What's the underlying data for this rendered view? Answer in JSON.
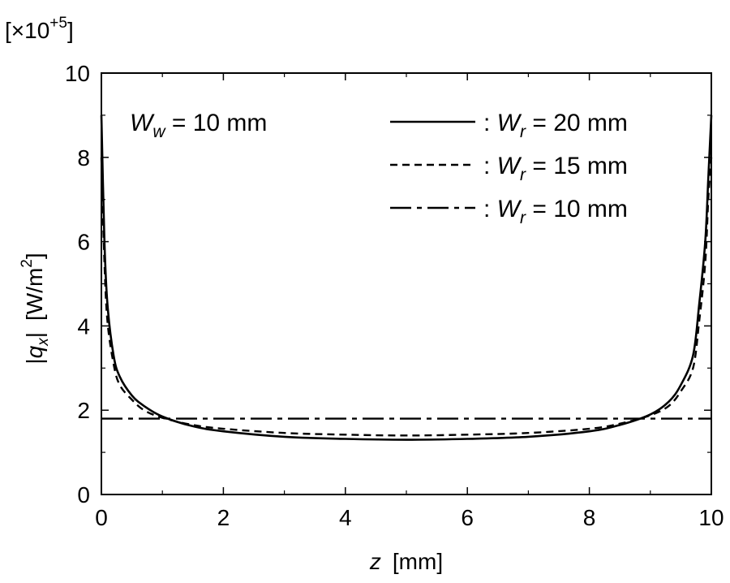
{
  "chart_data": {
    "type": "line",
    "multiplier_label": {
      "open": "[×10",
      "exp": "+5",
      "close": "]"
    },
    "xlabel": {
      "var": "z",
      "unit": "[mm]"
    },
    "ylabel": {
      "var": "q",
      "sub": "x",
      "unit": "[W/m",
      "exp": "2",
      "close": "]"
    },
    "xlim": [
      0,
      10
    ],
    "ylim": [
      0,
      10
    ],
    "xticks": [
      0,
      2,
      4,
      6,
      8,
      10
    ],
    "yticks": [
      0,
      2,
      4,
      6,
      8,
      10
    ],
    "grid": false,
    "annotation": {
      "var": "W",
      "sub": "w",
      "text": " = 10 mm"
    },
    "legend_position": "top-right",
    "series": [
      {
        "name": "W_r = 20 mm",
        "legend": {
          "prefix": ": ",
          "var": "W",
          "sub": "r",
          "text": " = 20 mm"
        },
        "style": "solid",
        "x": [
          0.0,
          0.05,
          0.1,
          0.2,
          0.3,
          0.5,
          0.7,
          1.0,
          1.5,
          2.0,
          3.0,
          4.0,
          5.0,
          6.0,
          7.0,
          8.0,
          8.5,
          9.0,
          9.3,
          9.5,
          9.7,
          9.8,
          9.9,
          9.95,
          10.0
        ],
        "y": [
          9.0,
          6.0,
          4.5,
          3.3,
          2.8,
          2.35,
          2.1,
          1.85,
          1.62,
          1.5,
          1.37,
          1.32,
          1.3,
          1.32,
          1.37,
          1.5,
          1.65,
          1.9,
          2.2,
          2.6,
          3.3,
          4.5,
          6.0,
          7.5,
          9.0
        ]
      },
      {
        "name": "W_r = 15 mm",
        "legend": {
          "prefix": ": ",
          "var": "W",
          "sub": "r",
          "text": " = 15 mm"
        },
        "style": "dashed",
        "x": [
          0.0,
          0.05,
          0.1,
          0.2,
          0.3,
          0.5,
          0.7,
          1.0,
          1.5,
          2.0,
          3.0,
          4.0,
          5.0,
          6.0,
          7.0,
          8.0,
          8.5,
          9.0,
          9.3,
          9.5,
          9.7,
          9.8,
          9.9,
          9.95,
          10.0
        ],
        "y": [
          8.0,
          5.5,
          4.1,
          3.1,
          2.6,
          2.25,
          2.0,
          1.82,
          1.65,
          1.56,
          1.46,
          1.42,
          1.4,
          1.42,
          1.46,
          1.56,
          1.68,
          1.88,
          2.1,
          2.45,
          3.0,
          4.1,
          5.5,
          7.0,
          8.0
        ]
      },
      {
        "name": "W_r = 10 mm",
        "legend": {
          "prefix": ": ",
          "var": "W",
          "sub": "r",
          "text": " = 10 mm"
        },
        "style": "dashdot",
        "x": [
          0.0,
          10.0
        ],
        "y": [
          1.8,
          1.8
        ]
      }
    ]
  }
}
